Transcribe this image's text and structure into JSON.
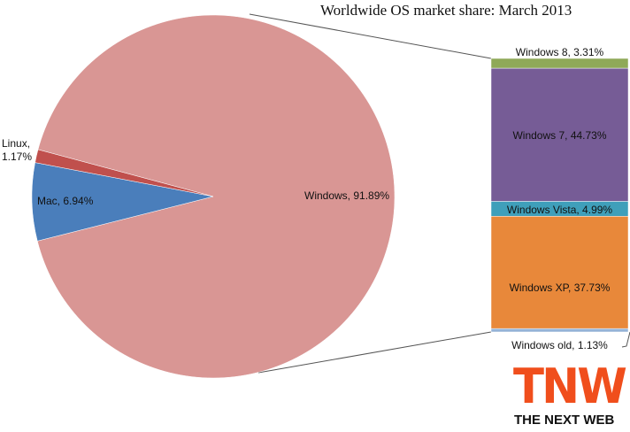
{
  "chart_data": [
    {
      "type": "pie",
      "title": "Worldwide OS market share: March 2013",
      "categories": [
        "Windows",
        "Mac",
        "Linux"
      ],
      "values": [
        91.89,
        6.94,
        1.17
      ],
      "value_labels": [
        "Windows, 91.89%",
        "Mac, 6.94%",
        "Linux, 1.17%"
      ],
      "colors": [
        "#d99694",
        "#4a7ebb",
        "#c0504d"
      ]
    },
    {
      "type": "stacked-bar",
      "categories": [
        "Windows 8",
        "Windows 7",
        "Windows Vista",
        "Windows XP",
        "Windows old"
      ],
      "values": [
        3.31,
        44.73,
        4.99,
        37.73,
        1.13
      ],
      "value_labels": [
        "Windows 8, 3.31%",
        "Windows 7, 44.73%",
        "Windows Vista, 4.99%",
        "Windows XP, 37.73%",
        "Windows old, 1.13%"
      ],
      "colors": [
        "#8fa958",
        "#765c96",
        "#3f9fba",
        "#e8883a",
        "#95b3d7"
      ]
    }
  ],
  "logo": {
    "mark": "TNW",
    "tagline": "THE NEXT WEB"
  }
}
